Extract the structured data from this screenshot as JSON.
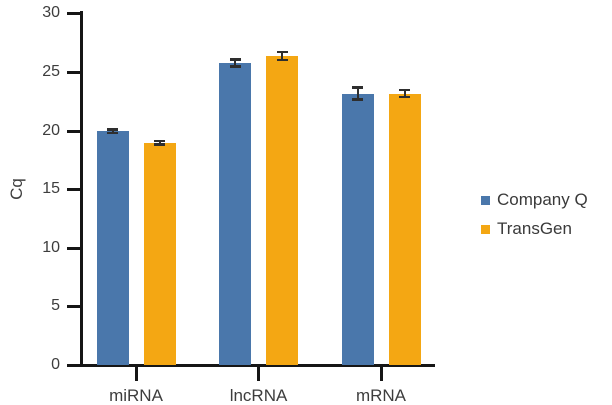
{
  "chart_data": {
    "type": "bar",
    "title": "",
    "categories": [
      "miRNA",
      "lncRNA",
      "mRNA"
    ],
    "series": [
      {
        "name": "Company Q",
        "color": "#4a77ab",
        "values": [
          20.0,
          25.8,
          23.2
        ],
        "errors": [
          0.15,
          0.3,
          0.5
        ]
      },
      {
        "name": "TransGen",
        "color": "#f4a713",
        "values": [
          19.0,
          26.4,
          23.2
        ],
        "errors": [
          0.15,
          0.35,
          0.3
        ]
      }
    ],
    "xlabel": "",
    "ylabel": "Cq",
    "ylim": [
      0,
      30
    ],
    "yticks": [
      0,
      5,
      10,
      15,
      20,
      25,
      30
    ],
    "grid": false,
    "legend_position": "right",
    "error_bars": true,
    "colors": {
      "axis": "#161616",
      "error_bar": "#2e2e2e",
      "text": "#3d3d3d",
      "background": "#ffffff"
    }
  }
}
